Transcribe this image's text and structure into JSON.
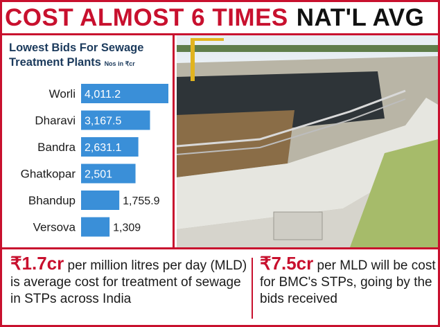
{
  "headline": {
    "red_part": "COST ALMOST 6 TIMES",
    "dark_part": "NAT'L AVG"
  },
  "colors": {
    "accent_red": "#c8102e",
    "bar_blue": "#3a8fd8",
    "title_navy": "#1b3a5c"
  },
  "chart_data": {
    "type": "bar",
    "orientation": "horizontal",
    "title": "Lowest Bids For Sewage Treatment Plants",
    "unit": "Nos in ₹cr",
    "categories": [
      "Worli",
      "Dharavi",
      "Bandra",
      "Ghatkopar",
      "Bhandup",
      "Versova"
    ],
    "values": [
      4011.2,
      3167.5,
      2631.1,
      2501,
      1755.9,
      1309
    ],
    "value_labels": [
      "4,011.2",
      "3,167.5",
      "2,631.1",
      "2,501",
      "1,755.9",
      "1,309"
    ],
    "xlim": [
      0,
      4011.2
    ],
    "grid": false,
    "legend": "none"
  },
  "photo": {
    "subject": "sewage-treatment-plant-photo"
  },
  "notes": {
    "left": {
      "highlight": "₹1.7cr",
      "text": " per million litres per day (MLD) is average cost for treatment of sewage in STPs across India"
    },
    "right": {
      "highlight": "₹7.5cr",
      "text": " per MLD will be cost for BMC's STPs, going by the bids received"
    }
  }
}
